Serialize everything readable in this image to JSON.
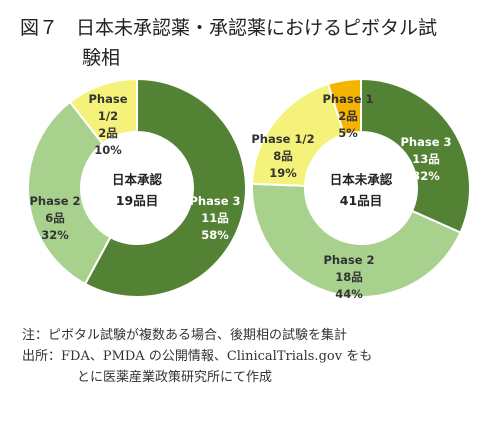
{
  "figure": {
    "number": "図７",
    "title_line1": "日本未承認薬・承認薬におけるピボタル試",
    "title_line2": "験相"
  },
  "chart_data": [
    {
      "type": "pie",
      "center_label": [
        "日本承認",
        "19品目"
      ],
      "slices": [
        {
          "name": "Phase 3",
          "count_label": "11品",
          "count": 11,
          "percent": 58,
          "color": "#548235"
        },
        {
          "name": "Phase 2",
          "count_label": "6品",
          "count": 6,
          "percent": 32,
          "color": "#a9d18e"
        },
        {
          "name": "Phase 1/2",
          "count_label": "2品",
          "count": 2,
          "percent": 10,
          "color": "#f4f27a"
        }
      ]
    },
    {
      "type": "pie",
      "center_label": [
        "日本未承認",
        "41品目"
      ],
      "slices": [
        {
          "name": "Phase 3",
          "count_label": "13品",
          "count": 13,
          "percent": 32,
          "color": "#548235"
        },
        {
          "name": "Phase 2",
          "count_label": "18品",
          "count": 18,
          "percent": 44,
          "color": "#a9d18e"
        },
        {
          "name": "Phase 1/2",
          "count_label": "8品",
          "count": 8,
          "percent": 19,
          "color": "#f4f27a"
        },
        {
          "name": "Phase 1",
          "count_label": "2品",
          "count": 2,
          "percent": 5,
          "color": "#f4b400"
        }
      ]
    }
  ],
  "notes": {
    "note": "注：ピボタル試験が複数ある場合、後期相の試験を集計",
    "source_line1": "出所：FDA、PMDA の公開情報、ClinicalTrials.gov をも",
    "source_line2": "とに医薬産業政策研究所にて作成"
  }
}
